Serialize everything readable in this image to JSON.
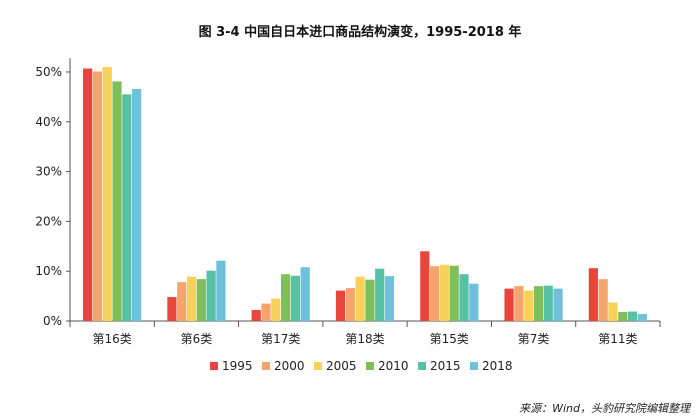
{
  "chart_data": {
    "type": "bar",
    "title": "图 3-4 中国自日本进口商品结构演变，1995-2018 年",
    "source": "来源：Wind，头豹研究院编辑整理",
    "categories": [
      "第16类",
      "第6类",
      "第17类",
      "第18类",
      "第15类",
      "第7类",
      "第11类"
    ],
    "y_ticks": [
      "0%",
      "10%",
      "20%",
      "30%",
      "40%",
      "50%"
    ],
    "ylim": [
      0,
      52
    ],
    "grid": false,
    "legend_position": "bottom",
    "series": [
      {
        "name": "1995",
        "color": "#e8453c",
        "values": [
          50.7,
          4.8,
          2.2,
          6.1,
          14.0,
          6.5,
          10.6
        ]
      },
      {
        "name": "2000",
        "color": "#f4a46c",
        "values": [
          50.1,
          7.8,
          3.5,
          6.6,
          11.0,
          7.0,
          8.4
        ]
      },
      {
        "name": "2005",
        "color": "#f7d15a",
        "values": [
          51.0,
          8.9,
          4.5,
          8.9,
          11.3,
          6.1,
          3.7
        ]
      },
      {
        "name": "2010",
        "color": "#7dbf5a",
        "values": [
          48.1,
          8.4,
          9.4,
          8.3,
          11.1,
          7.0,
          1.8
        ]
      },
      {
        "name": "2015",
        "color": "#56c1a4",
        "values": [
          45.5,
          10.1,
          9.1,
          10.5,
          9.4,
          7.1,
          1.9
        ]
      },
      {
        "name": "2018",
        "color": "#6ec0db",
        "values": [
          46.6,
          12.1,
          10.8,
          9.0,
          7.5,
          6.5,
          1.4
        ]
      }
    ]
  }
}
